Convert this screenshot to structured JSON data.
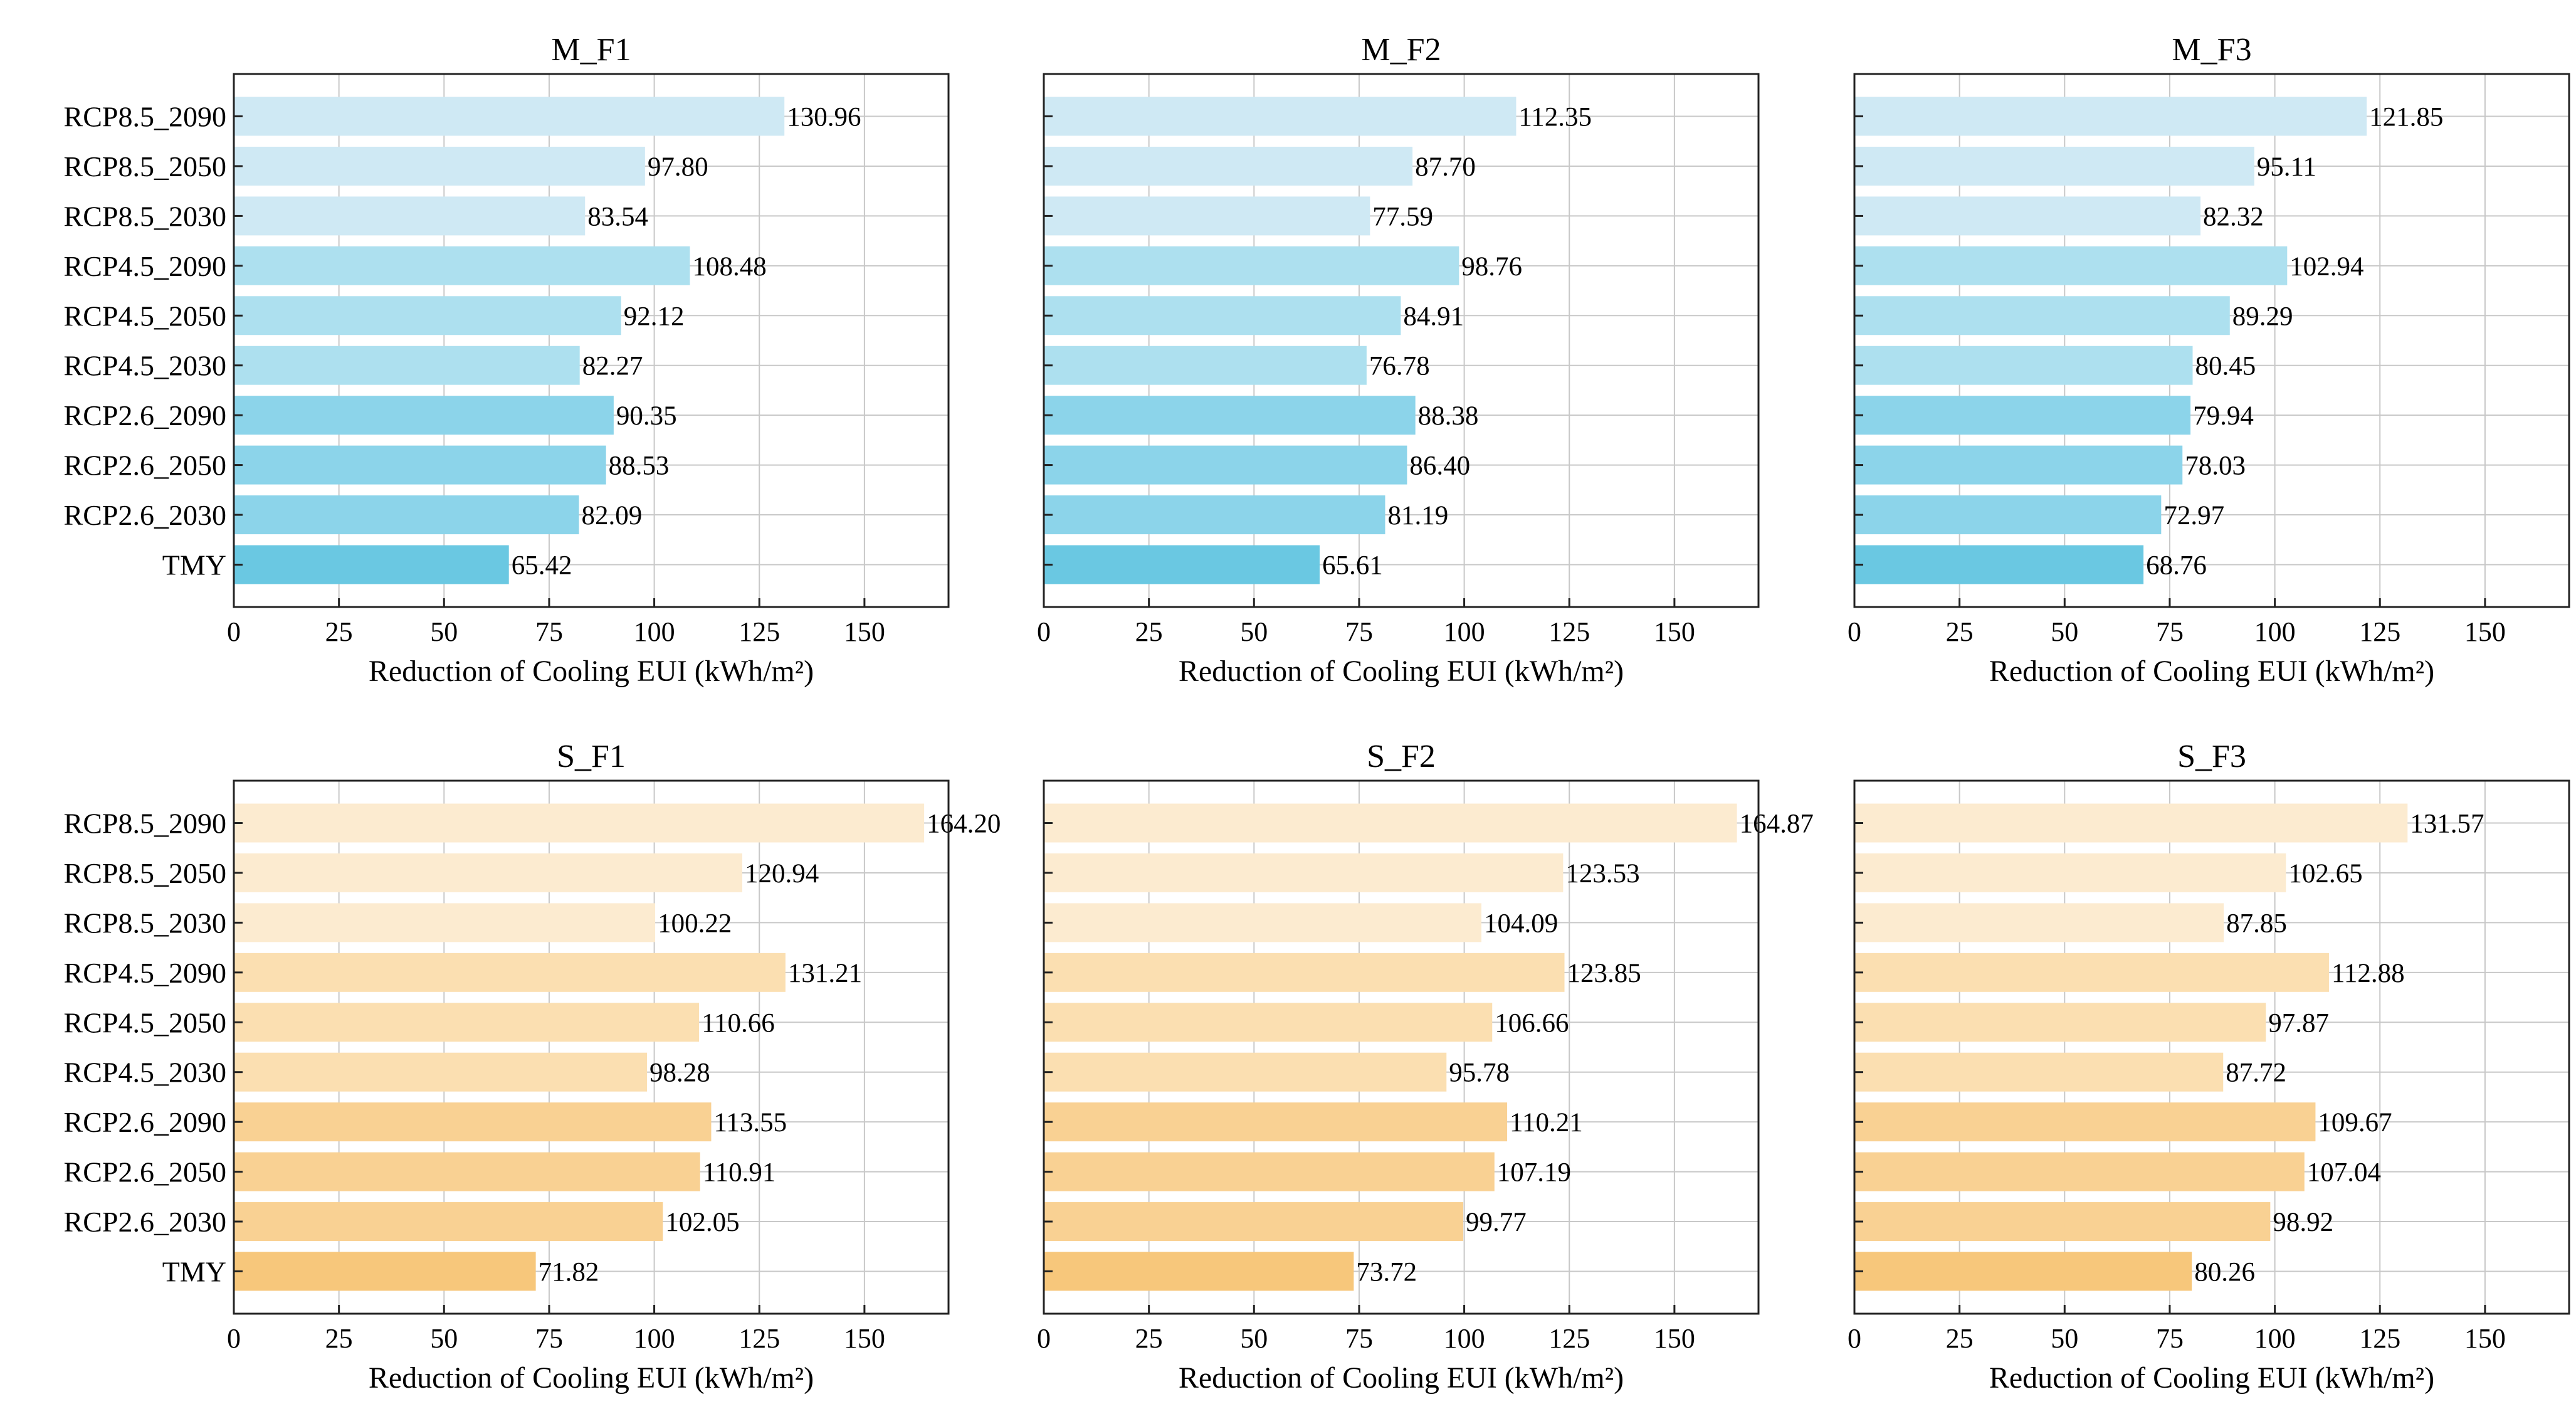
{
  "figure": {
    "colors": {
      "M": [
        "#cfe9f4",
        "#ade0ef",
        "#8cd4ea",
        "#6ac8e2"
      ],
      "S": [
        "#fcebd0",
        "#fbdfb1",
        "#f9d193",
        "#f7c77b"
      ]
    }
  },
  "chart_data": [
    {
      "type": "bar",
      "orientation": "horizontal",
      "group": "M",
      "title": "M_F1",
      "categories": [
        "RCP8.5_2090",
        "RCP8.5_2050",
        "RCP8.5_2030",
        "RCP4.5_2090",
        "RCP4.5_2050",
        "RCP4.5_2030",
        "RCP2.6_2090",
        "RCP2.6_2050",
        "RCP2.6_2030",
        "TMY"
      ],
      "values": [
        130.96,
        97.8,
        83.54,
        108.48,
        92.12,
        82.27,
        90.35,
        88.53,
        82.09,
        65.42
      ],
      "value_labels": [
        "130.96",
        "97.80",
        "83.54",
        "108.48",
        "92.12",
        "82.27",
        "90.35",
        "88.53",
        "82.09",
        "65.42"
      ],
      "xlabel": "Reduction of Cooling EUI (kWh/m²)",
      "xticks": [
        "0",
        "25",
        "50",
        "75",
        "100",
        "125",
        "150"
      ],
      "xlim": [
        0,
        170
      ],
      "grid": true
    },
    {
      "type": "bar",
      "orientation": "horizontal",
      "group": "M",
      "title": "M_F2",
      "categories": [
        "RCP8.5_2090",
        "RCP8.5_2050",
        "RCP8.5_2030",
        "RCP4.5_2090",
        "RCP4.5_2050",
        "RCP4.5_2030",
        "RCP2.6_2090",
        "RCP2.6_2050",
        "RCP2.6_2030",
        "TMY"
      ],
      "values": [
        112.35,
        87.7,
        77.59,
        98.76,
        84.91,
        76.78,
        88.38,
        86.4,
        81.19,
        65.61
      ],
      "value_labels": [
        "112.35",
        "87.70",
        "77.59",
        "98.76",
        "84.91",
        "76.78",
        "88.38",
        "86.40",
        "81.19",
        "65.61"
      ],
      "xlabel": "Reduction of Cooling EUI (kWh/m²)",
      "xticks": [
        "0",
        "25",
        "50",
        "75",
        "100",
        "125",
        "150"
      ],
      "xlim": [
        0,
        170
      ],
      "grid": true
    },
    {
      "type": "bar",
      "orientation": "horizontal",
      "group": "M",
      "title": "M_F3",
      "categories": [
        "RCP8.5_2090",
        "RCP8.5_2050",
        "RCP8.5_2030",
        "RCP4.5_2090",
        "RCP4.5_2050",
        "RCP4.5_2030",
        "RCP2.6_2090",
        "RCP2.6_2050",
        "RCP2.6_2030",
        "TMY"
      ],
      "values": [
        121.85,
        95.11,
        82.32,
        102.94,
        89.29,
        80.45,
        79.94,
        78.03,
        72.97,
        68.76
      ],
      "value_labels": [
        "121.85",
        "95.11",
        "82.32",
        "102.94",
        "89.29",
        "80.45",
        "79.94",
        "78.03",
        "72.97",
        "68.76"
      ],
      "xlabel": "Reduction of Cooling EUI (kWh/m²)",
      "xticks": [
        "0",
        "25",
        "50",
        "75",
        "100",
        "125",
        "150"
      ],
      "xlim": [
        0,
        170
      ],
      "grid": true
    },
    {
      "type": "bar",
      "orientation": "horizontal",
      "group": "S",
      "title": "S_F1",
      "categories": [
        "RCP8.5_2090",
        "RCP8.5_2050",
        "RCP8.5_2030",
        "RCP4.5_2090",
        "RCP4.5_2050",
        "RCP4.5_2030",
        "RCP2.6_2090",
        "RCP2.6_2050",
        "RCP2.6_2030",
        "TMY"
      ],
      "values": [
        164.2,
        120.94,
        100.22,
        131.21,
        110.66,
        98.28,
        113.55,
        110.91,
        102.05,
        71.82
      ],
      "value_labels": [
        "164.20",
        "120.94",
        "100.22",
        "131.21",
        "110.66",
        "98.28",
        "113.55",
        "110.91",
        "102.05",
        "71.82"
      ],
      "xlabel": "Reduction of Cooling EUI (kWh/m²)",
      "xticks": [
        "0",
        "25",
        "50",
        "75",
        "100",
        "125",
        "150"
      ],
      "xlim": [
        0,
        170
      ],
      "grid": true
    },
    {
      "type": "bar",
      "orientation": "horizontal",
      "group": "S",
      "title": "S_F2",
      "categories": [
        "RCP8.5_2090",
        "RCP8.5_2050",
        "RCP8.5_2030",
        "RCP4.5_2090",
        "RCP4.5_2050",
        "RCP4.5_2030",
        "RCP2.6_2090",
        "RCP2.6_2050",
        "RCP2.6_2030",
        "TMY"
      ],
      "values": [
        164.87,
        123.53,
        104.09,
        123.85,
        106.66,
        95.78,
        110.21,
        107.19,
        99.77,
        73.72
      ],
      "value_labels": [
        "164.87",
        "123.53",
        "104.09",
        "123.85",
        "106.66",
        "95.78",
        "110.21",
        "107.19",
        "99.77",
        "73.72"
      ],
      "xlabel": "Reduction of Cooling EUI (kWh/m²)",
      "xticks": [
        "0",
        "25",
        "50",
        "75",
        "100",
        "125",
        "150"
      ],
      "xlim": [
        0,
        170
      ],
      "grid": true
    },
    {
      "type": "bar",
      "orientation": "horizontal",
      "group": "S",
      "title": "S_F3",
      "categories": [
        "RCP8.5_2090",
        "RCP8.5_2050",
        "RCP8.5_2030",
        "RCP4.5_2090",
        "RCP4.5_2050",
        "RCP4.5_2030",
        "RCP2.6_2090",
        "RCP2.6_2050",
        "RCP2.6_2030",
        "TMY"
      ],
      "values": [
        131.57,
        102.65,
        87.85,
        112.88,
        97.87,
        87.72,
        109.67,
        107.04,
        98.92,
        80.26
      ],
      "value_labels": [
        "131.57",
        "102.65",
        "87.85",
        "112.88",
        "97.87",
        "87.72",
        "109.67",
        "107.04",
        "98.92",
        "80.26"
      ],
      "xlabel": "Reduction of Cooling EUI (kWh/m²)",
      "xticks": [
        "0",
        "25",
        "50",
        "75",
        "100",
        "125",
        "150"
      ],
      "xlim": [
        0,
        170
      ],
      "grid": true
    }
  ]
}
